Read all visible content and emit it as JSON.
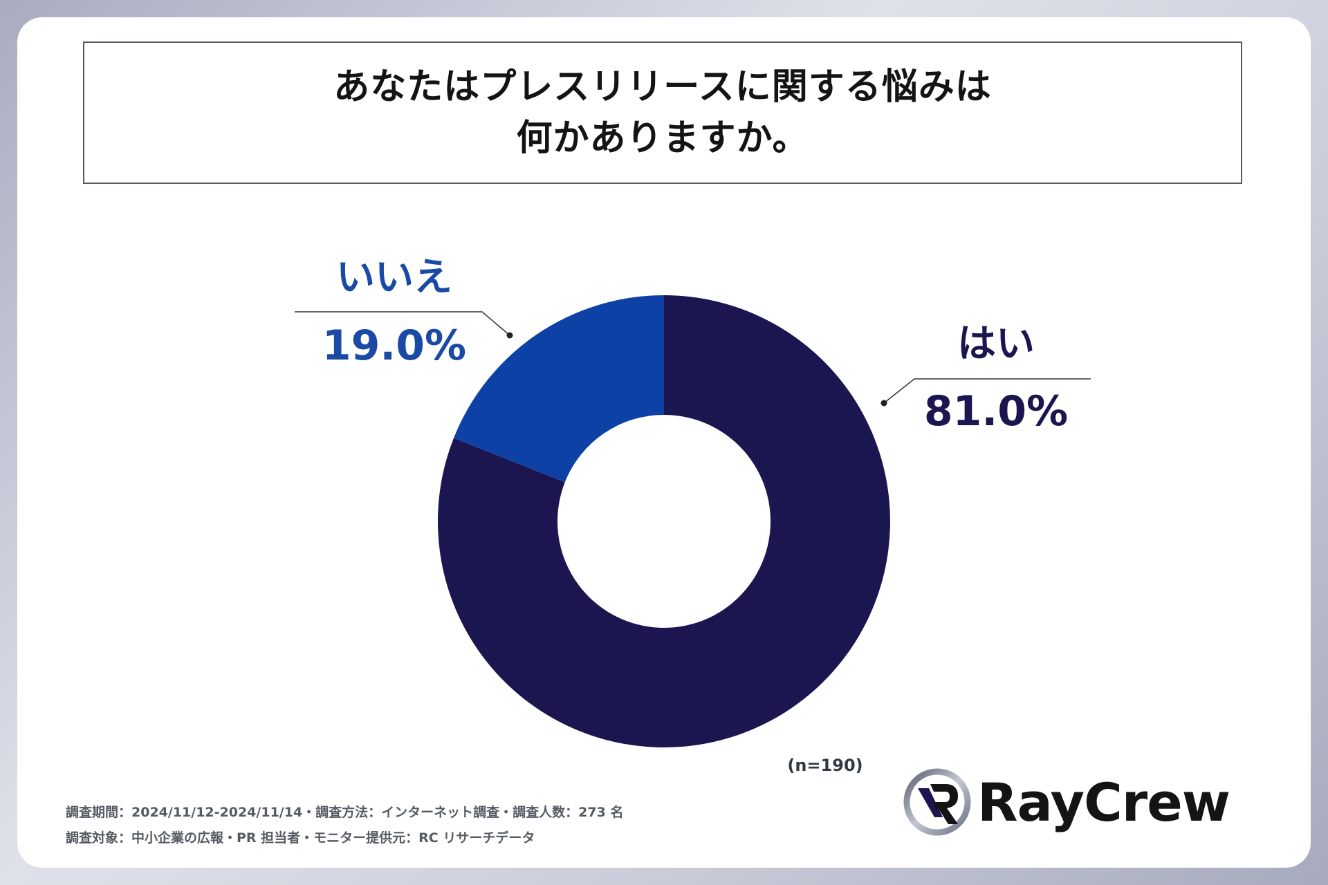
{
  "title": {
    "line1": "あなたはプレスリリースに関する悩みは",
    "line2": "何かありますか。"
  },
  "chart_data": {
    "type": "pie",
    "donut": true,
    "categories": [
      "はい",
      "いいえ"
    ],
    "values": [
      81.0,
      19.0
    ],
    "value_labels": [
      "81.0%",
      "19.0%"
    ],
    "colors": [
      "#1c1650",
      "#0d41a5"
    ],
    "label_colors": [
      "#1c1650",
      "#1a4aa5"
    ],
    "sample_size": "(n=190)"
  },
  "footer": {
    "line1": "調査期間：2024/11/12-2024/11/14・調査方法：インターネット調査・調査人数：273 名",
    "line2": "調査対象：中小企業の広報・PR 担当者・モニター提供元：RC リサーチデータ"
  },
  "logo": {
    "text": "RayCrew"
  }
}
